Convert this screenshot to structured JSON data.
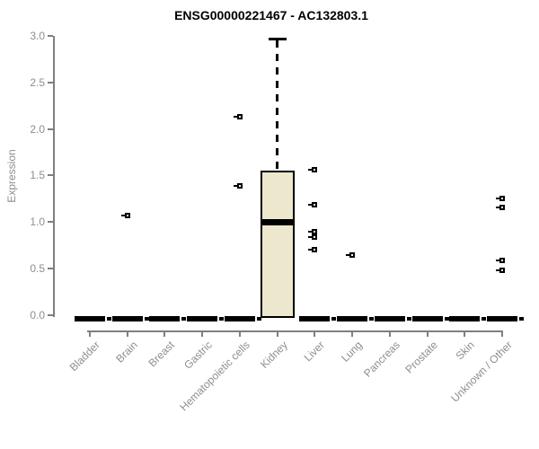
{
  "title": "ENSG00000221467 - AC132803.1",
  "chart_data": {
    "type": "boxplot",
    "title": "ENSG00000221467 - AC132803.1",
    "xlabel": "",
    "ylabel": "Expression",
    "ylim": [
      0,
      3
    ],
    "yticks": [
      0,
      0.5,
      1,
      1.5,
      2,
      2.5,
      3
    ],
    "ytick_labels": [
      "0.0",
      "0.5",
      "1.0",
      "1.5",
      "2.0",
      "2.5",
      "3.0"
    ],
    "grid": false,
    "legend": "none",
    "categories": [
      "Bladder",
      "Brain",
      "Breast",
      "Gastric",
      "Hematopoietic cells",
      "Kidney",
      "Liver",
      "Lung",
      "Pancreas",
      "Prostate",
      "Skin",
      "Unknown / Other"
    ],
    "boxes": [
      {
        "category": "Bladder",
        "min": 0,
        "q1": 0,
        "median": 0,
        "q3": 0,
        "max": 0,
        "outliers": []
      },
      {
        "category": "Brain",
        "min": 0,
        "q1": 0,
        "median": 0,
        "q3": 0,
        "max": 0,
        "outliers": [
          1.07
        ]
      },
      {
        "category": "Breast",
        "min": 0,
        "q1": 0,
        "median": 0,
        "q3": 0,
        "max": 0,
        "outliers": []
      },
      {
        "category": "Gastric",
        "min": 0,
        "q1": 0,
        "median": 0,
        "q3": 0,
        "max": 0,
        "outliers": []
      },
      {
        "category": "Hematopoietic cells",
        "min": 0,
        "q1": 0,
        "median": 0,
        "q3": 0,
        "max": 0,
        "outliers": [
          2.13,
          1.39
        ]
      },
      {
        "category": "Kidney",
        "min": 0,
        "q1": 0,
        "median": 1.0,
        "q3": 1.55,
        "max": 2.97,
        "outliers": []
      },
      {
        "category": "Liver",
        "min": 0,
        "q1": 0,
        "median": 0,
        "q3": 0,
        "max": 0,
        "outliers": [
          1.56,
          1.19,
          0.9,
          0.84,
          0.7
        ]
      },
      {
        "category": "Lung",
        "min": 0,
        "q1": 0,
        "median": 0,
        "q3": 0,
        "max": 0,
        "outliers": [
          0.65
        ]
      },
      {
        "category": "Pancreas",
        "min": 0,
        "q1": 0,
        "median": 0,
        "q3": 0,
        "max": 0,
        "outliers": []
      },
      {
        "category": "Prostate",
        "min": 0,
        "q1": 0,
        "median": 0,
        "q3": 0,
        "max": 0,
        "outliers": []
      },
      {
        "category": "Skin",
        "min": 0,
        "q1": 0,
        "median": 0,
        "q3": 0,
        "max": 0,
        "outliers": []
      },
      {
        "category": "Unknown / Other",
        "min": 0,
        "q1": 0,
        "median": 0,
        "q3": 0,
        "max": 0,
        "outliers": [
          1.25,
          1.16,
          0.59,
          0.48
        ]
      }
    ],
    "colors": {
      "box_fill": "#EDE8CD",
      "box_border": "#000000",
      "median": "#000000",
      "whisker": "#000000",
      "outlier": "#000000",
      "axis": "#7f7f7f",
      "label_text": "#8e8e8e",
      "title_text": "#000000",
      "background": "#ffffff"
    }
  }
}
